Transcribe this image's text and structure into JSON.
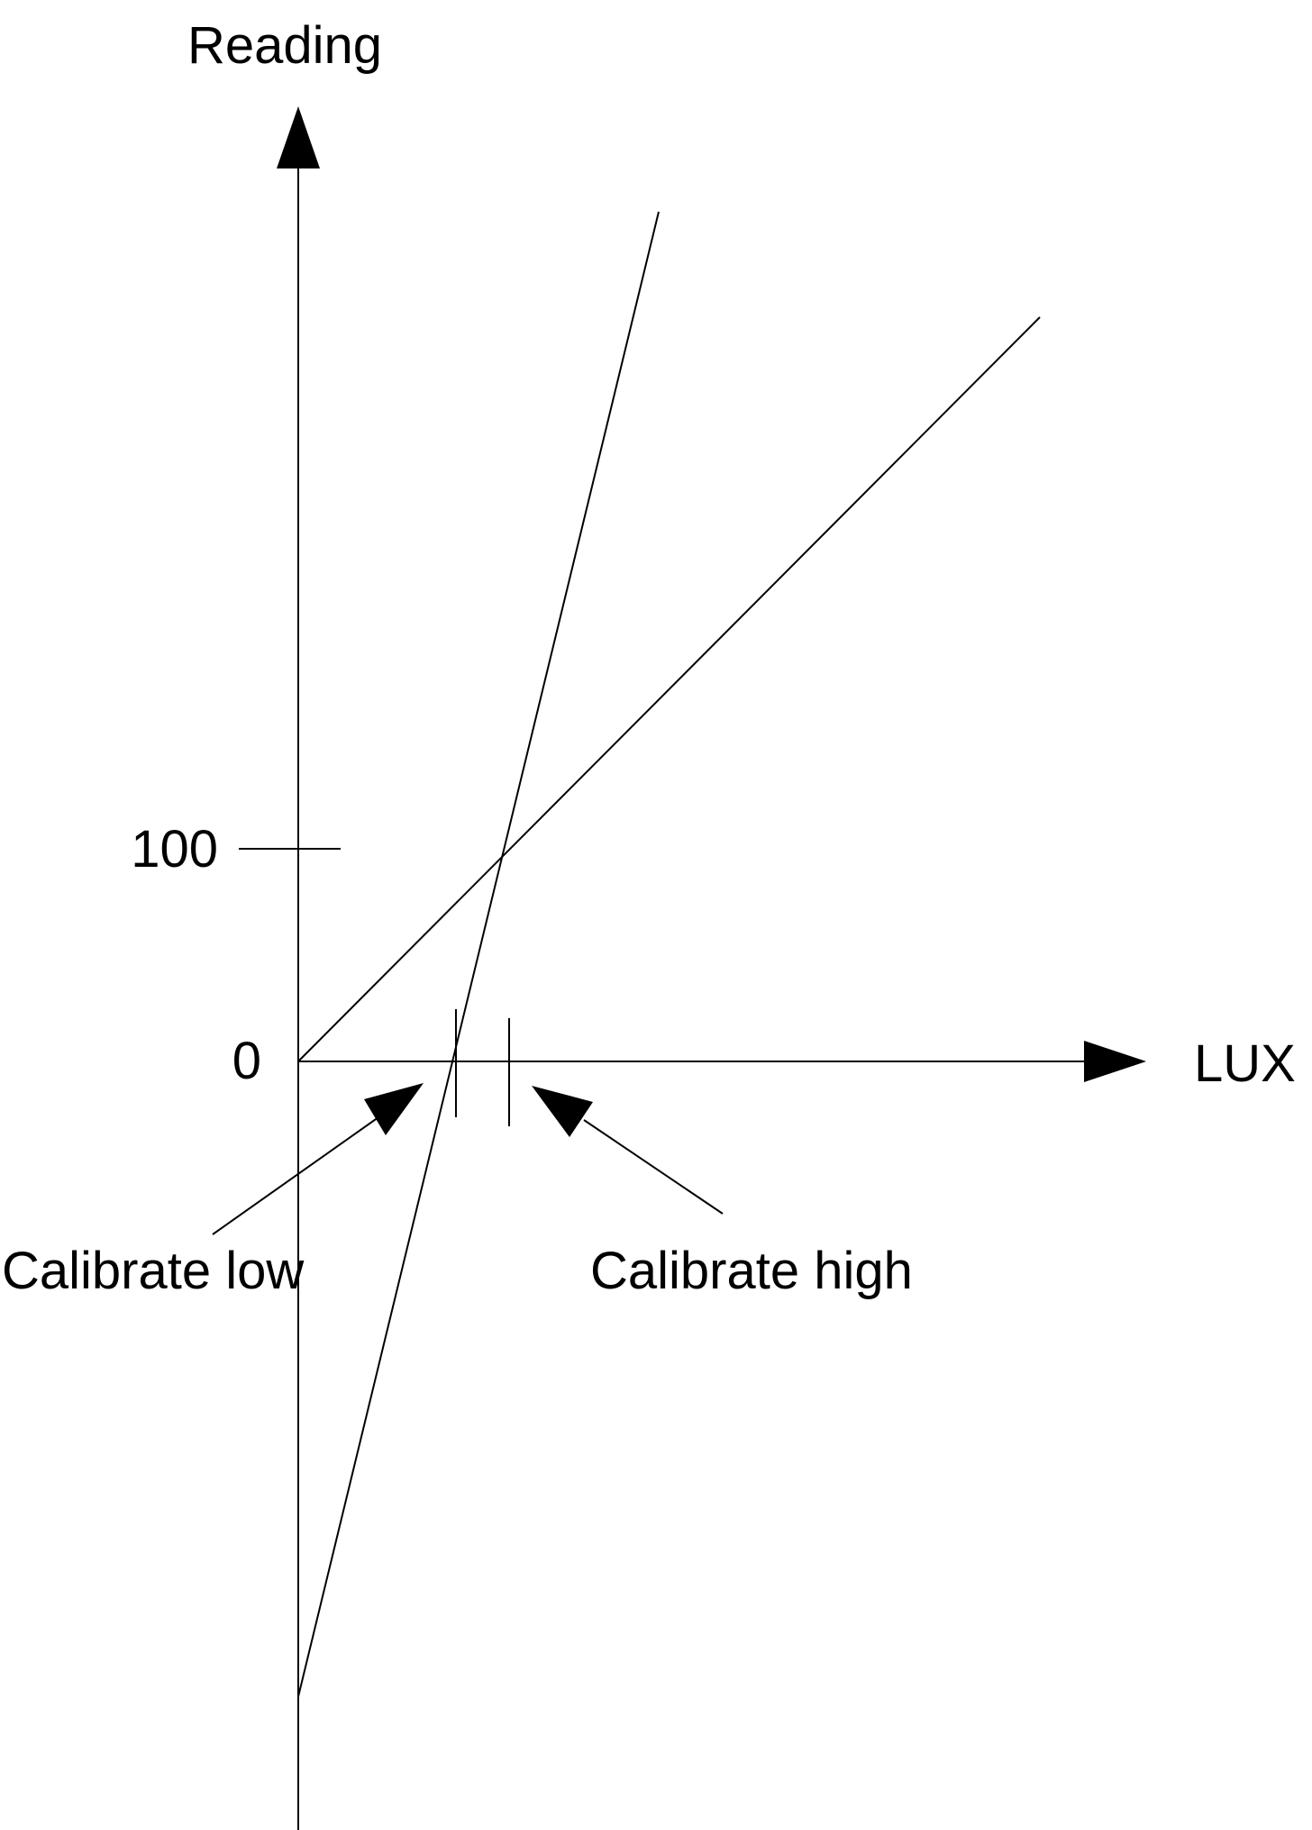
{
  "axes": {
    "y_label": "Reading",
    "x_label": "LUX",
    "ticks": [
      {
        "label": "100"
      },
      {
        "label": "0"
      }
    ]
  },
  "annotations": {
    "calibrate_low": "Calibrate low",
    "calibrate_high": "Calibrate high"
  },
  "colors": {
    "ink": "#000000",
    "background": "#ffffff"
  }
}
